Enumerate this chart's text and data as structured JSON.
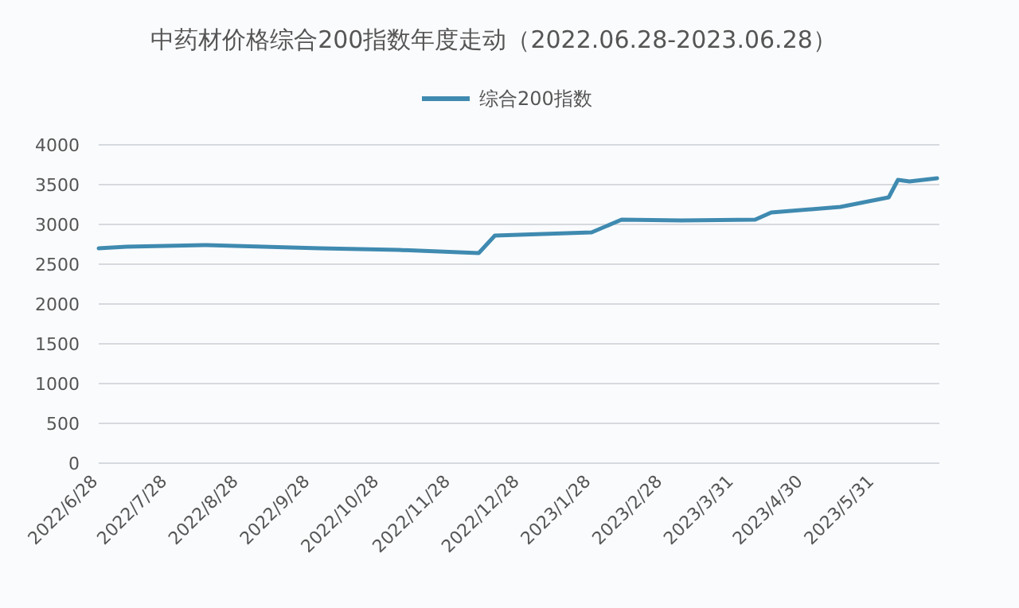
{
  "chart_data": {
    "type": "line",
    "title": "中药材价格综合200指数年度走动（2022.06.28-2023.06.28）",
    "x": [
      "2022-06-28",
      "2022-07-10",
      "2022-08-14",
      "2022-10-02",
      "2022-11-05",
      "2022-12-10",
      "2022-12-17",
      "2023-01-28",
      "2023-02-10",
      "2023-03-08",
      "2023-04-09",
      "2023-04-16",
      "2023-05-16",
      "2023-06-06",
      "2023-06-10",
      "2023-06-15",
      "2023-06-27"
    ],
    "series": [
      {
        "name": "综合200指数",
        "color": "#3f8ab0",
        "values": [
          2700,
          2720,
          2740,
          2700,
          2680,
          2640,
          2860,
          2900,
          3060,
          3050,
          3060,
          3150,
          3220,
          3340,
          3560,
          3540,
          3580
        ]
      }
    ],
    "xlim": [
      "2022-06-28",
      "2023-06-28"
    ],
    "xticks": [
      {
        "value": "2022-06-28",
        "label": "2022/6/28"
      },
      {
        "value": "2022-07-28",
        "label": "2022/7/28"
      },
      {
        "value": "2022-08-28",
        "label": "2022/8/28"
      },
      {
        "value": "2022-09-28",
        "label": "2022/9/28"
      },
      {
        "value": "2022-10-28",
        "label": "2022/10/28"
      },
      {
        "value": "2022-11-28",
        "label": "2022/11/28"
      },
      {
        "value": "2022-12-28",
        "label": "2022/12/28"
      },
      {
        "value": "2023-01-28",
        "label": "2023/1/28"
      },
      {
        "value": "2023-02-28",
        "label": "2023/2/28"
      },
      {
        "value": "2023-03-31",
        "label": "2023/3/31"
      },
      {
        "value": "2023-04-30",
        "label": "2023/4/30"
      },
      {
        "value": "2023-05-31",
        "label": "2023/5/31"
      }
    ],
    "ylim": [
      0,
      4000
    ],
    "yticks": [
      0,
      500,
      1000,
      1500,
      2000,
      2500,
      3000,
      3500,
      4000
    ],
    "grid": "y",
    "legend": "top",
    "marker": "none",
    "line_style": "solid"
  }
}
